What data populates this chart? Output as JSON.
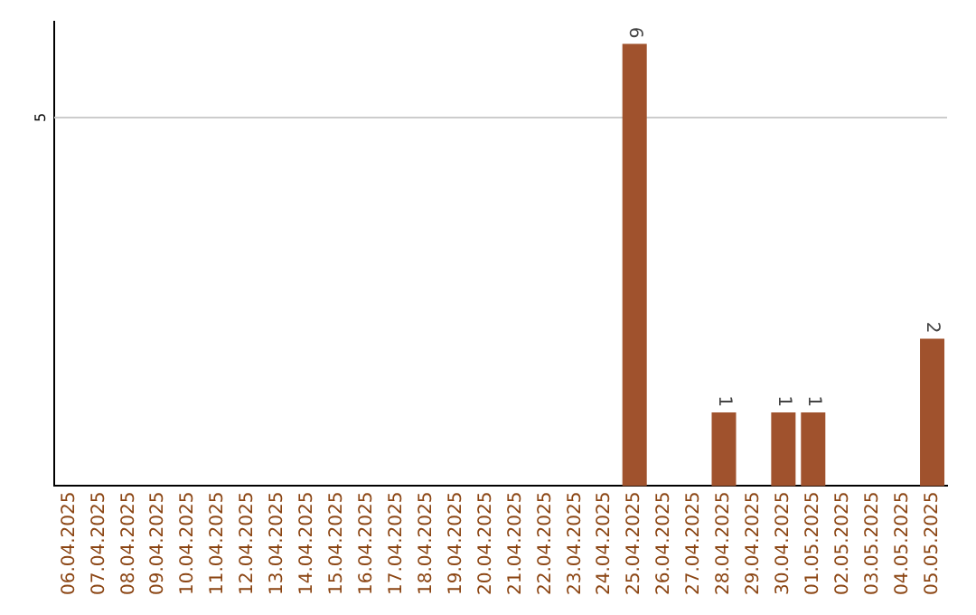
{
  "chart_data": {
    "type": "bar",
    "categories": [
      "06.04.2025",
      "07.04.2025",
      "08.04.2025",
      "09.04.2025",
      "10.04.2025",
      "11.04.2025",
      "12.04.2025",
      "13.04.2025",
      "14.04.2025",
      "15.04.2025",
      "16.04.2025",
      "17.04.2025",
      "18.04.2025",
      "19.04.2025",
      "20.04.2025",
      "21.04.2025",
      "22.04.2025",
      "23.04.2025",
      "24.04.2025",
      "25.04.2025",
      "26.04.2025",
      "27.04.2025",
      "28.04.2025",
      "29.04.2025",
      "30.04.2025",
      "01.05.2025",
      "02.05.2025",
      "03.05.2025",
      "04.05.2025",
      "05.05.2025"
    ],
    "values": [
      null,
      null,
      null,
      null,
      null,
      null,
      null,
      null,
      null,
      null,
      null,
      null,
      null,
      null,
      null,
      null,
      null,
      null,
      null,
      6,
      null,
      null,
      1,
      null,
      1,
      1,
      null,
      null,
      null,
      2
    ],
    "data_labels": true,
    "color": "#a0522d",
    "ylim": [
      0,
      6.3
    ],
    "ref_lines": [
      {
        "axis": "y",
        "value": 5,
        "label": "5",
        "color": "#cccccc"
      }
    ]
  }
}
